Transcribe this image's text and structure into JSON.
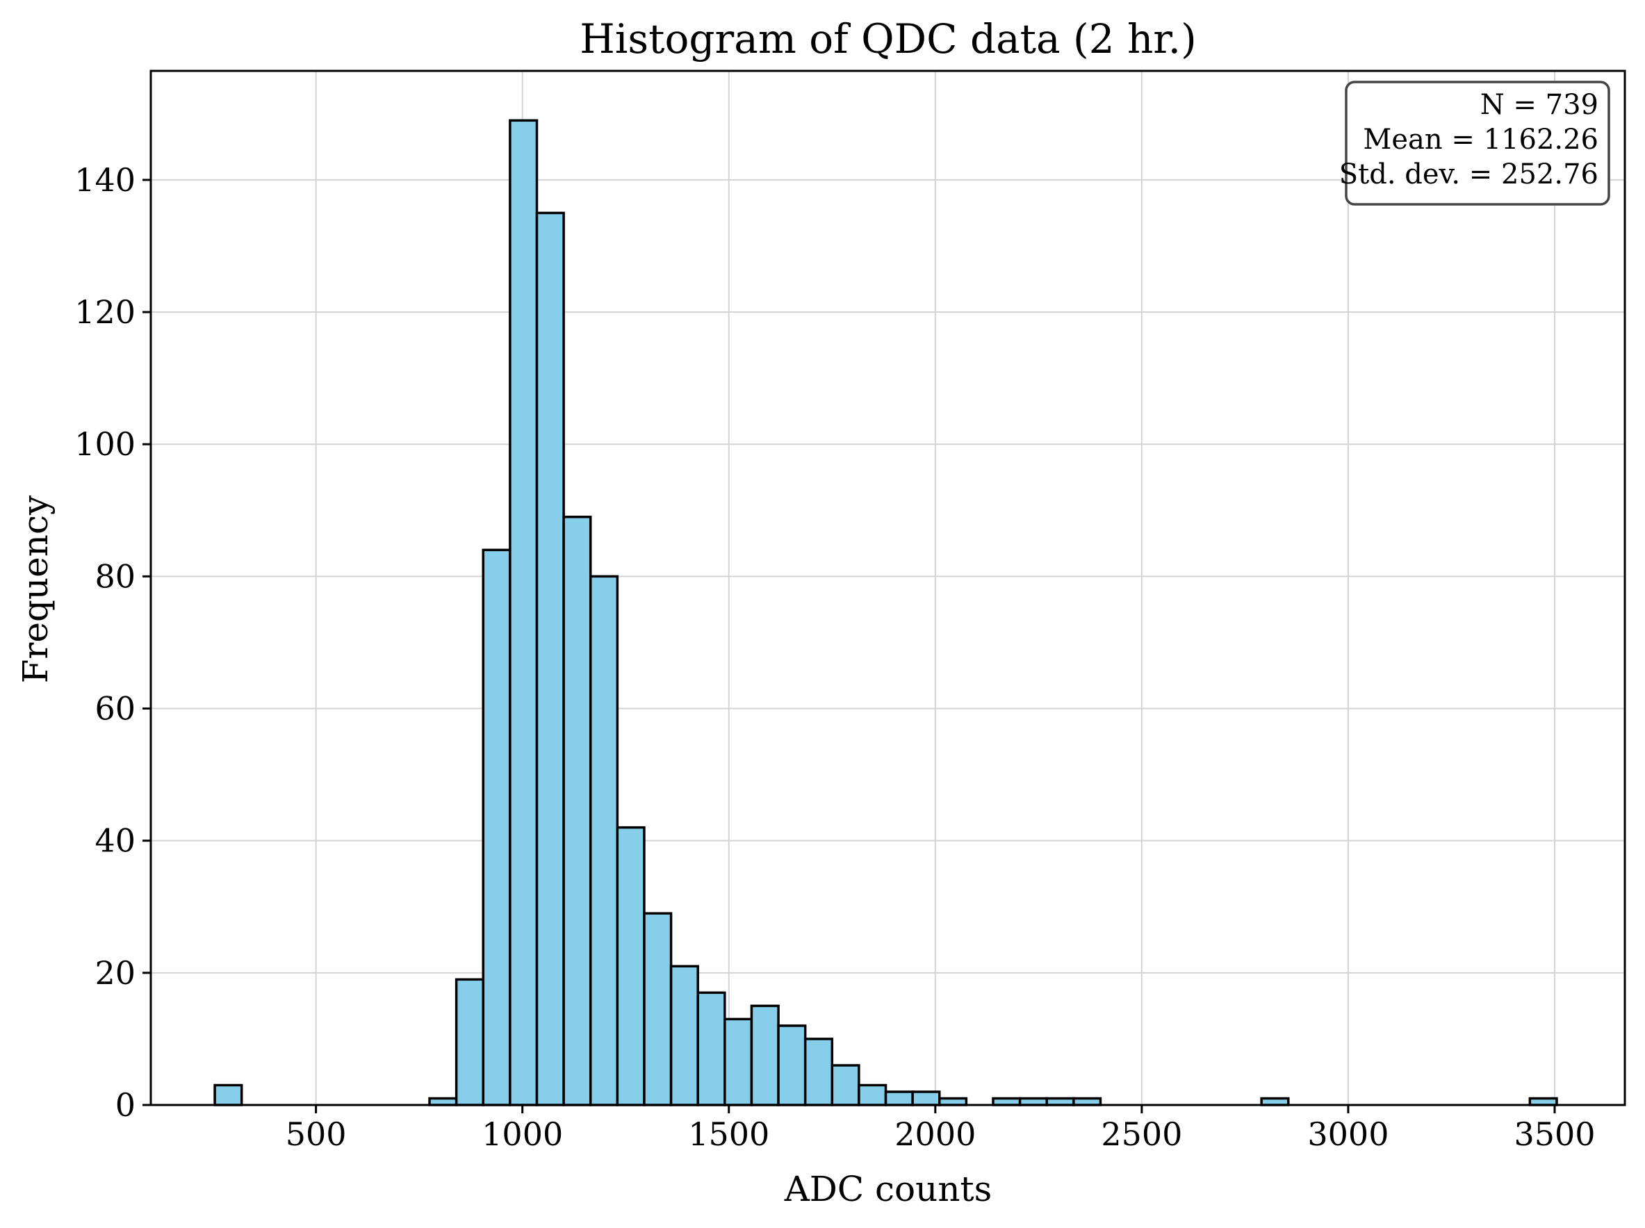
{
  "chart_data": {
    "type": "bar",
    "title": "Histogram of QDC data (2 hr.)",
    "xlabel": "ADC counts",
    "ylabel": "Frequency",
    "xlim": [
      100,
      3670
    ],
    "ylim": [
      0,
      156.5
    ],
    "xticks": [
      500,
      1000,
      1500,
      2000,
      2500,
      3000,
      3500
    ],
    "yticks": [
      0,
      20,
      40,
      60,
      80,
      100,
      120,
      140
    ],
    "grid": true,
    "bar_color": "#87ceeb",
    "edge_color": "#000000",
    "bin_edges": [
      255,
      320,
      385,
      450,
      515,
      580,
      645,
      710,
      775,
      840,
      905,
      970,
      1035,
      1100,
      1165,
      1230,
      1295,
      1360,
      1425,
      1490,
      1555,
      1620,
      1685,
      1750,
      1815,
      1880,
      1945,
      2010,
      2075,
      2140,
      2205,
      2270,
      2335,
      2400,
      2465,
      2530,
      2595,
      2660,
      2725,
      2790,
      2855,
      2920,
      2985,
      3050,
      3115,
      3180,
      3245,
      3310,
      3375,
      3440,
      3505
    ],
    "values": [
      3,
      0,
      0,
      0,
      0,
      0,
      0,
      0,
      1,
      19,
      84,
      149,
      135,
      89,
      80,
      42,
      29,
      21,
      17,
      13,
      15,
      12,
      10,
      6,
      3,
      2,
      2,
      1,
      0,
      1,
      1,
      1,
      1,
      0,
      0,
      0,
      0,
      0,
      0,
      1,
      0,
      0,
      0,
      0,
      0,
      0,
      0,
      0,
      0,
      1
    ],
    "stats": {
      "lines": [
        "N = 739",
        "Mean = 1162.26",
        "Std. dev. = 252.76"
      ],
      "placement": "top-right"
    }
  }
}
